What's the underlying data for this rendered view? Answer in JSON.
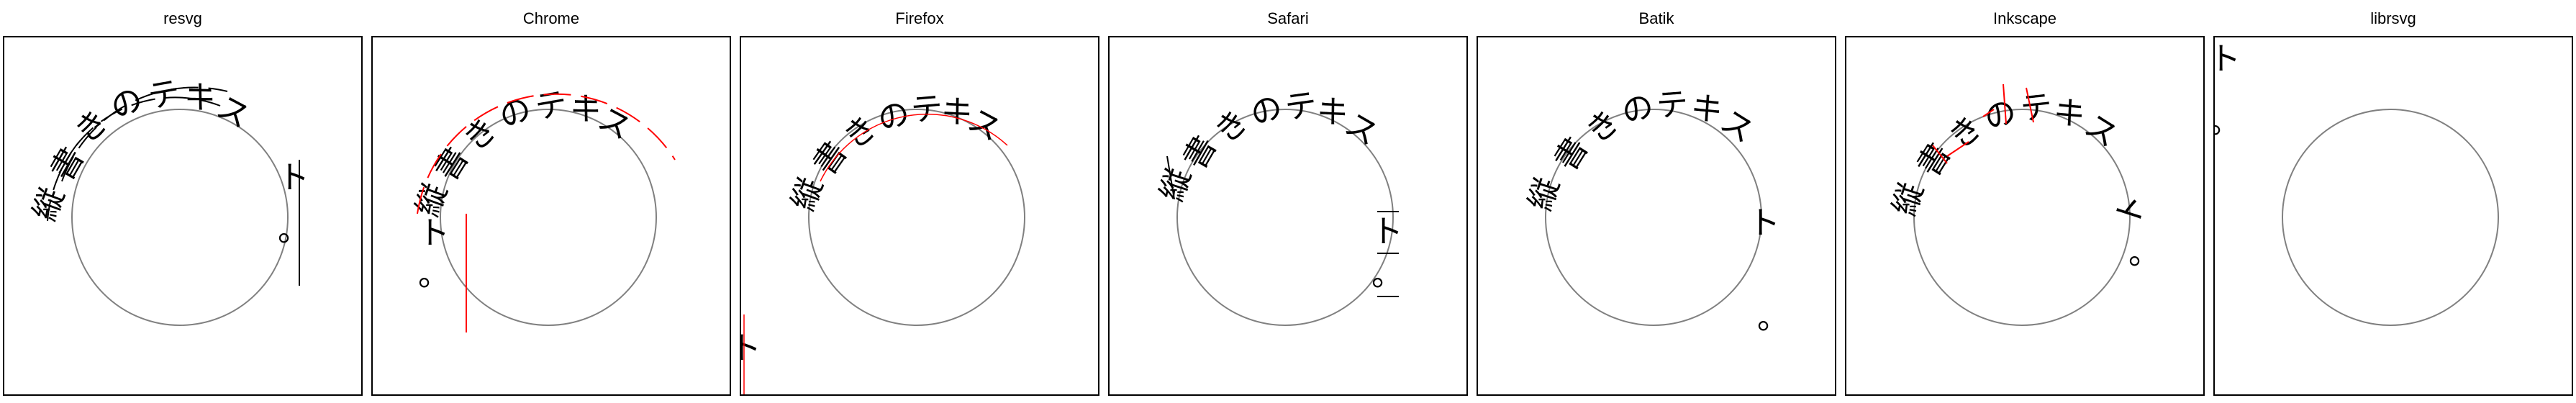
{
  "panels": [
    {
      "title": "resvg",
      "renderer": "resvg"
    },
    {
      "title": "Chrome",
      "renderer": "chrome"
    },
    {
      "title": "Firefox",
      "renderer": "firefox"
    },
    {
      "title": "Safari",
      "renderer": "safari"
    },
    {
      "title": "Batik",
      "renderer": "batik"
    },
    {
      "title": "Inkscape",
      "renderer": "inkscape"
    },
    {
      "title": "librsvg",
      "renderer": "librsvg"
    }
  ],
  "colors": {
    "text": "#000000",
    "circle": "#808080",
    "decoration_error": "#ff0000",
    "frame": "#000000"
  },
  "path_text": "縦書きのテキスト。"
}
